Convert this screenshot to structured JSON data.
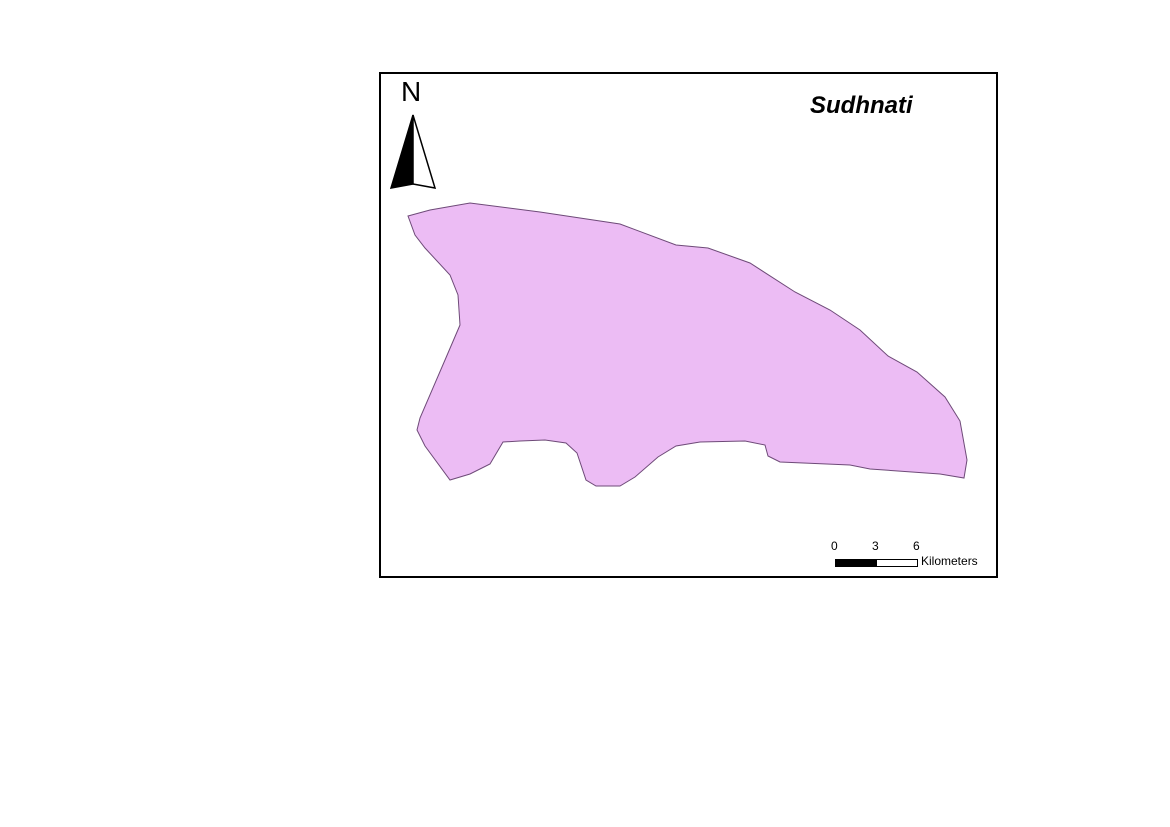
{
  "map": {
    "title": "Sudhnati",
    "region_fill": "#ecbcf4",
    "region_stroke": "#6e4a78",
    "frame_color": "#000000"
  },
  "north_arrow": {
    "label": "N",
    "icon": "north-arrow-icon"
  },
  "scale_bar": {
    "ticks": [
      "0",
      "3",
      "6"
    ],
    "unit": "Kilometers"
  }
}
